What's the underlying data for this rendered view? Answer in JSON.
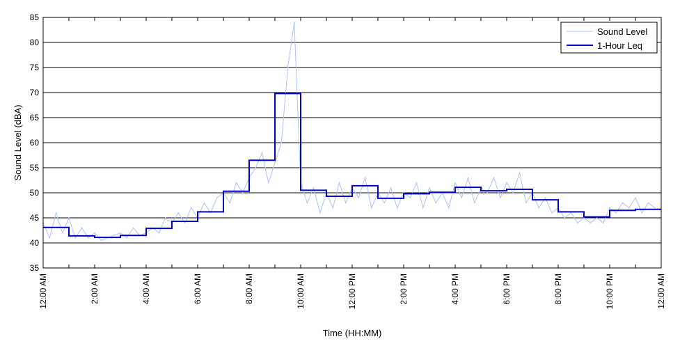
{
  "chart_data": {
    "type": "line",
    "title": "",
    "xlabel": "Time (HH:MM)",
    "ylabel": "Sound Level (dBA)",
    "xlim": [
      0,
      24
    ],
    "ylim": [
      35,
      85
    ],
    "grid": "horizontal",
    "legend_position": "top-right",
    "y_ticks": [
      "35",
      "40",
      "45",
      "50",
      "55",
      "60",
      "65",
      "70",
      "75",
      "80",
      "85"
    ],
    "x_ticks": [
      {
        "hour": 0,
        "label": "12:00 AM"
      },
      {
        "hour": 2,
        "label": "2:00 AM"
      },
      {
        "hour": 4,
        "label": "4:00 AM"
      },
      {
        "hour": 6,
        "label": "6:00 AM"
      },
      {
        "hour": 8,
        "label": "8:00 AM"
      },
      {
        "hour": 10,
        "label": "10:00 AM"
      },
      {
        "hour": 12,
        "label": "12:00 PM"
      },
      {
        "hour": 14,
        "label": "2:00 PM"
      },
      {
        "hour": 16,
        "label": "4:00 PM"
      },
      {
        "hour": 18,
        "label": "6:00 PM"
      },
      {
        "hour": 20,
        "label": "8:00 PM"
      },
      {
        "hour": 22,
        "label": "10:00 PM"
      },
      {
        "hour": 24,
        "label": "12:00 AM"
      }
    ],
    "series": [
      {
        "name": "Sound Level",
        "color": "#a9c4f5",
        "x": [
          0,
          0.25,
          0.5,
          0.75,
          1,
          1.25,
          1.5,
          1.75,
          2,
          2.25,
          2.5,
          2.75,
          3,
          3.25,
          3.5,
          3.75,
          4,
          4.25,
          4.5,
          4.75,
          5,
          5.25,
          5.5,
          5.75,
          6,
          6.25,
          6.5,
          6.75,
          7,
          7.25,
          7.5,
          7.75,
          8,
          8.25,
          8.5,
          8.75,
          9,
          9.25,
          9.5,
          9.75,
          10,
          10.25,
          10.5,
          10.75,
          11,
          11.25,
          11.5,
          11.75,
          12,
          12.25,
          12.5,
          12.75,
          13,
          13.25,
          13.5,
          13.75,
          14,
          14.25,
          14.5,
          14.75,
          15,
          15.25,
          15.5,
          15.75,
          16,
          16.25,
          16.5,
          16.75,
          17,
          17.25,
          17.5,
          17.75,
          18,
          18.25,
          18.5,
          18.75,
          19,
          19.25,
          19.5,
          19.75,
          20,
          20.25,
          20.5,
          20.75,
          21,
          21.25,
          21.5,
          21.75,
          22,
          22.25,
          22.5,
          22.75,
          23,
          23.25,
          23.5,
          23.75
        ],
        "values": [
          44,
          41,
          46,
          42,
          45,
          41,
          43,
          41,
          42,
          40.5,
          41,
          41.5,
          42,
          41,
          43,
          41.5,
          42,
          43,
          42,
          45,
          44,
          46,
          44,
          47,
          45,
          48,
          46,
          49,
          50,
          48,
          52,
          50,
          53,
          55,
          58,
          52,
          56,
          60,
          75,
          84,
          52,
          48,
          51,
          46,
          50,
          47,
          52,
          48,
          51,
          49,
          53,
          47,
          50,
          48,
          51,
          47,
          50,
          49,
          52,
          47,
          51,
          48,
          50,
          47,
          52,
          49,
          53,
          48,
          51,
          50,
          53,
          49,
          52,
          50,
          54,
          48,
          50,
          47,
          49,
          46,
          47,
          45,
          46,
          44,
          45,
          44,
          45,
          44,
          47,
          46,
          48,
          47,
          49,
          46,
          48,
          47
        ]
      },
      {
        "name": "1-Hour Leq",
        "color": "#0000c8",
        "x": [
          0,
          1,
          2,
          3,
          4,
          5,
          6,
          7,
          8,
          9,
          10,
          11,
          12,
          13,
          14,
          15,
          16,
          17,
          18,
          19,
          20,
          21,
          22,
          23
        ],
        "values": [
          43.1,
          41.4,
          41.1,
          41.5,
          42.9,
          44.3,
          46.2,
          50.3,
          56.5,
          69.8,
          50.5,
          49.3,
          51.4,
          48.9,
          49.8,
          50.1,
          51.1,
          50.4,
          50.7,
          48.6,
          46.2,
          45.2,
          46.5,
          46.7
        ]
      }
    ]
  }
}
